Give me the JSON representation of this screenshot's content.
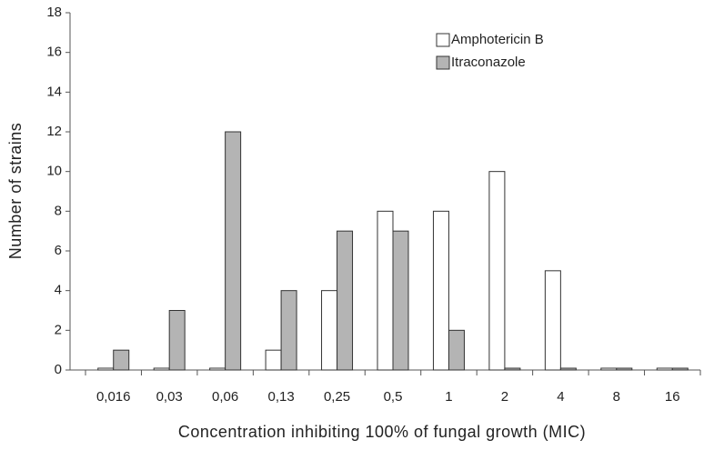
{
  "chart_data": {
    "type": "bar",
    "x_label": "Concentration inhibiting 100% of fungal growth (MIC)",
    "y_label": "Number of strains",
    "categories": [
      "0,016",
      "0,03",
      "0,06",
      "0,13",
      "0,25",
      "0,5",
      "1",
      "2",
      "4",
      "8",
      "16"
    ],
    "series": [
      {
        "name": "Amphotericin B",
        "color": "#ffffff",
        "values": [
          0,
          0,
          0,
          1,
          4,
          8,
          8,
          10,
          5,
          0,
          0
        ]
      },
      {
        "name": "Itraconazole",
        "color": "#b4b4b4",
        "values": [
          1,
          3,
          12,
          4,
          7,
          7,
          2,
          0,
          0,
          0,
          0
        ]
      }
    ],
    "ylim": [
      0,
      18
    ],
    "yticks": [
      0,
      2,
      4,
      6,
      8,
      10,
      12,
      14,
      16,
      18
    ],
    "legend": "top-right",
    "grid": false
  }
}
